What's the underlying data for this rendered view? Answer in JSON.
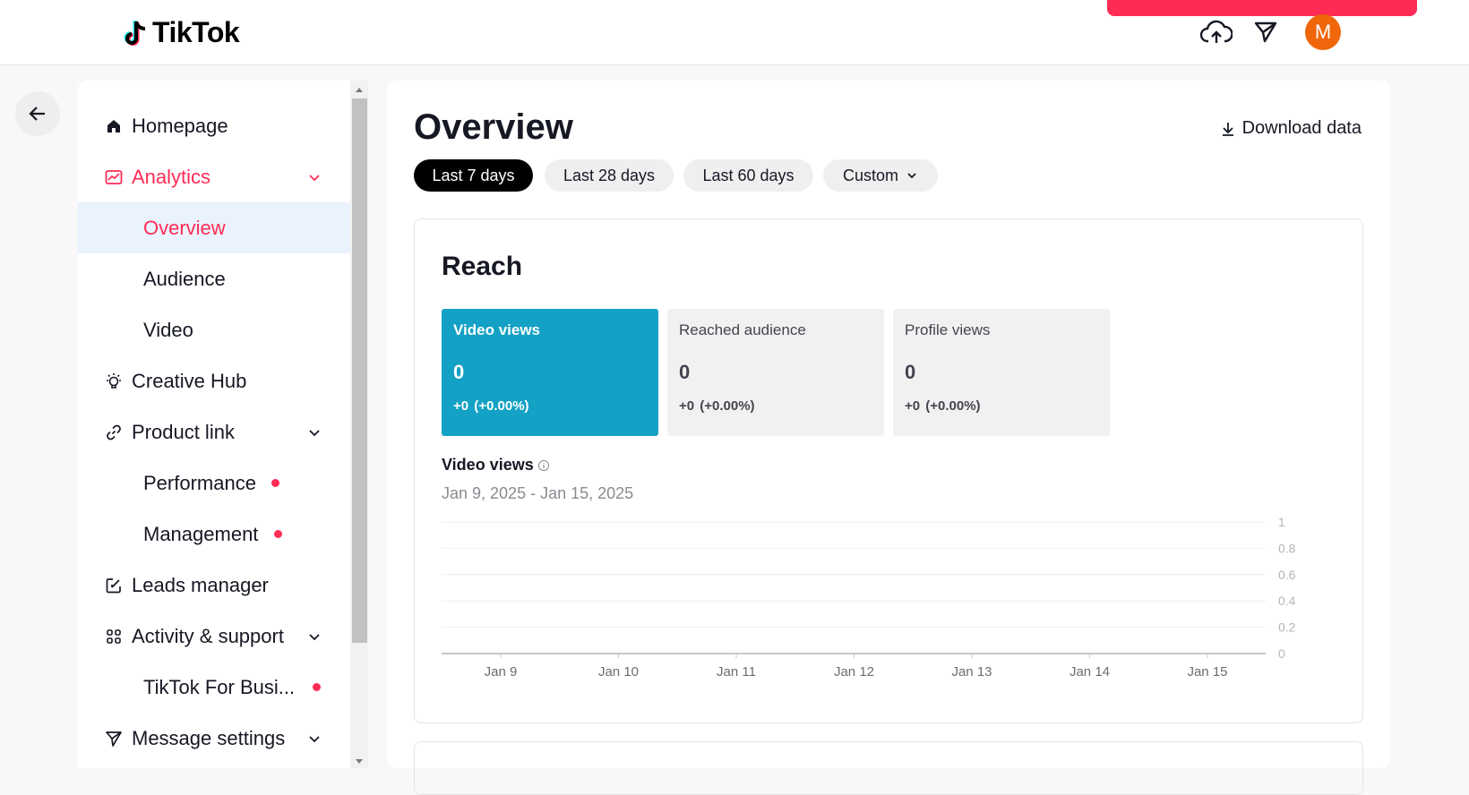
{
  "header": {
    "logo_text": "TikTok",
    "avatar_letter": "M",
    "accent_color": "#fe2c55"
  },
  "sidebar": {
    "items": [
      {
        "label": "Homepage"
      },
      {
        "label": "Analytics"
      },
      {
        "label": "Overview"
      },
      {
        "label": "Audience"
      },
      {
        "label": "Video"
      },
      {
        "label": "Creative Hub"
      },
      {
        "label": "Product link"
      },
      {
        "label": "Performance"
      },
      {
        "label": "Management"
      },
      {
        "label": "Leads manager"
      },
      {
        "label": "Activity & support"
      },
      {
        "label": "TikTok For Busi..."
      },
      {
        "label": "Message settings"
      }
    ]
  },
  "main": {
    "title": "Overview",
    "download_label": "Download data",
    "ranges": [
      "Last 7 days",
      "Last 28 days",
      "Last 60 days",
      "Custom"
    ],
    "reach": {
      "title": "Reach",
      "metrics": [
        {
          "label": "Video views",
          "value": "0",
          "delta": "+0 (+0.00%)"
        },
        {
          "label": "Reached audience",
          "value": "0",
          "delta": "+0 (+0.00%)"
        },
        {
          "label": "Profile views",
          "value": "0",
          "delta": "+0 (+0.00%)"
        }
      ],
      "chart_title": "Video views",
      "chart_range": "Jan 9, 2025 - Jan 15, 2025"
    }
  },
  "chart_data": {
    "type": "line",
    "x": [
      "Jan 9",
      "Jan 10",
      "Jan 11",
      "Jan 12",
      "Jan 13",
      "Jan 14",
      "Jan 15"
    ],
    "series": [
      {
        "values": [
          0,
          0,
          0,
          0,
          0,
          0,
          0
        ]
      }
    ],
    "yticks": [
      "1",
      "0.8",
      "0.6",
      "0.4",
      "0.2",
      "0"
    ],
    "ylim": [
      0,
      1
    ],
    "grid": true
  }
}
